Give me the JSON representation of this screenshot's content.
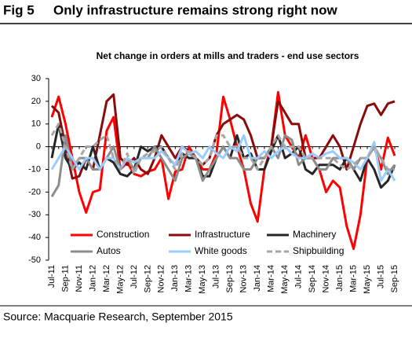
{
  "chart_data": {
    "type": "line",
    "figure_label": "Fig 5",
    "title": "Only infrastructure remains strong right now",
    "subtitle": "Net change in orders at mills and traders - end use sectors",
    "source": "Source: Macquarie Research, September 2015",
    "categories": [
      "Jul-11",
      null,
      "Sep-11",
      null,
      "Nov-11",
      null,
      "Jan-12",
      null,
      "Mar-12",
      null,
      "May-12",
      null,
      "Jul-12",
      null,
      "Sep-12",
      null,
      "Nov-12",
      null,
      "Jan-13",
      null,
      "Mar-13",
      null,
      "May-13",
      null,
      "Jul-13",
      null,
      "Sep-13",
      null,
      "Nov-13",
      null,
      "Jan-14",
      null,
      "Mar-14",
      null,
      "May-14",
      null,
      "Jul-14",
      null,
      "Sep-14",
      null,
      "Nov-14",
      null,
      "Jan-15",
      null,
      "Mar-15",
      null,
      "May-15",
      null,
      "Jul-15",
      null,
      "Sep-15"
    ],
    "ylim": [
      -50,
      30
    ],
    "yticks": [
      -50,
      -40,
      -30,
      -20,
      -10,
      0,
      10,
      20,
      30
    ],
    "series": [
      {
        "name": "Construction",
        "color": "#ff0000",
        "dashed": false,
        "values": [
          13,
          22,
          10,
          -5,
          -20,
          -29,
          -20,
          -19,
          7,
          13,
          -10,
          -7,
          -12,
          -13,
          -11,
          -10,
          -5,
          -23,
          -11,
          -10,
          0,
          -5,
          -10,
          -10,
          -3,
          22,
          12,
          0,
          -10,
          -25,
          -33,
          -10,
          0,
          24,
          5,
          0,
          -5,
          5,
          -5,
          -10,
          -20,
          -15,
          -18,
          -35,
          -45,
          -30,
          -5,
          0,
          -10,
          4,
          -4
        ]
      },
      {
        "name": "Infrastructure",
        "color": "#8b0a0a",
        "dashed": false,
        "values": [
          18,
          15,
          0,
          -14,
          -13,
          -5,
          -10,
          5,
          20,
          23,
          -5,
          -8,
          -5,
          -10,
          -12,
          -5,
          5,
          0,
          -5,
          0,
          -2,
          -5,
          -8,
          -5,
          5,
          10,
          12,
          14,
          12,
          5,
          -5,
          -5,
          0,
          20,
          15,
          10,
          10,
          -5,
          -5,
          -5,
          0,
          5,
          0,
          -10,
          0,
          10,
          18,
          19,
          14,
          19,
          20
        ]
      },
      {
        "name": "Machinery",
        "color": "#262626",
        "dashed": false,
        "values": [
          -5,
          10,
          -5,
          -10,
          -7,
          -10,
          0,
          -10,
          -5,
          -7,
          -12,
          -13,
          -10,
          0,
          -2,
          0,
          0,
          -5,
          -8,
          -3,
          -5,
          -5,
          -13,
          -13,
          -5,
          0,
          -5,
          5,
          -5,
          -3,
          -10,
          -10,
          -2,
          5,
          -5,
          -3,
          0,
          -10,
          -12,
          -8,
          -8,
          -8,
          -10,
          -5,
          -10,
          -15,
          -5,
          -10,
          -18,
          -15,
          -8
        ]
      },
      {
        "name": "Autos",
        "color": "#8c8c8c",
        "dashed": false,
        "values": [
          -22,
          -17,
          5,
          -10,
          -5,
          -5,
          -10,
          -10,
          -5,
          0,
          -10,
          -5,
          -10,
          -5,
          -5,
          0,
          -5,
          -10,
          -15,
          -5,
          -3,
          -5,
          -15,
          -10,
          -5,
          0,
          -5,
          -5,
          -10,
          -10,
          -5,
          -5,
          0,
          -5,
          5,
          3,
          -8,
          -5,
          -5,
          -10,
          -10,
          -5,
          -5,
          -5,
          -10,
          -5,
          -5,
          0,
          -5,
          -12,
          -8
        ]
      },
      {
        "name": "White goods",
        "color": "#99ccff",
        "dashed": false,
        "values": [
          -10,
          -5,
          0,
          -5,
          -10,
          -5,
          -5,
          -10,
          -5,
          -5,
          -10,
          -5,
          -7,
          -5,
          -5,
          -5,
          -2,
          -5,
          -8,
          0,
          -3,
          -2,
          -5,
          0,
          -3,
          -5,
          0,
          -2,
          5,
          -5,
          -5,
          -2,
          -5,
          -2,
          0,
          -3,
          -5,
          -5,
          -3,
          -5,
          -3,
          -2,
          -5,
          -5,
          -7,
          -10,
          -5,
          2,
          -15,
          -10,
          -15
        ]
      },
      {
        "name": "Shipbuilding",
        "color": "#a6a6a6",
        "dashed": true,
        "values": [
          5,
          10,
          0,
          -10,
          -5,
          0,
          0,
          3,
          5,
          -5,
          -10,
          -3,
          -12,
          -5,
          -3,
          -2,
          0,
          -5,
          -10,
          -3,
          -2,
          -5,
          -8,
          -5,
          5,
          5,
          0,
          0,
          -5,
          -5,
          -10,
          -5,
          0,
          5,
          0,
          0,
          0,
          -5,
          -5,
          -5,
          -5,
          -5,
          -8,
          -10,
          -8,
          -5,
          -5,
          0,
          -5,
          -10,
          -10
        ]
      }
    ]
  }
}
